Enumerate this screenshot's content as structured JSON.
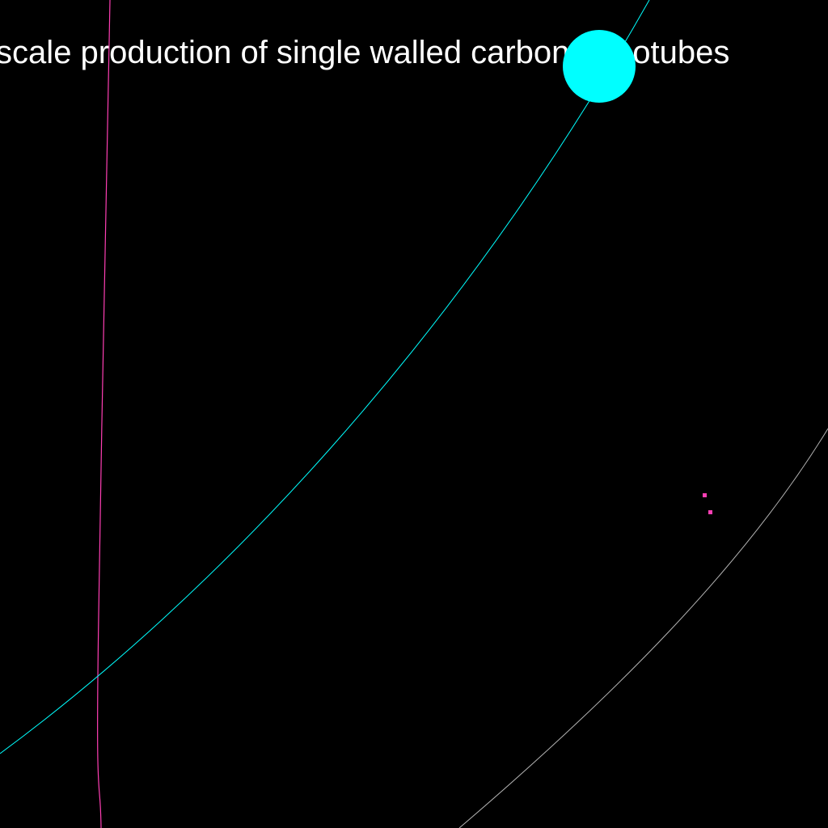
{
  "caption": {
    "text": "large scale production of single walled carbon nanotubes",
    "color": "#ffffff"
  },
  "colors": {
    "background": "#000000",
    "cyan": "#00ffff",
    "magenta": "#ff3fb4",
    "grey": "#b4b4b4"
  }
}
